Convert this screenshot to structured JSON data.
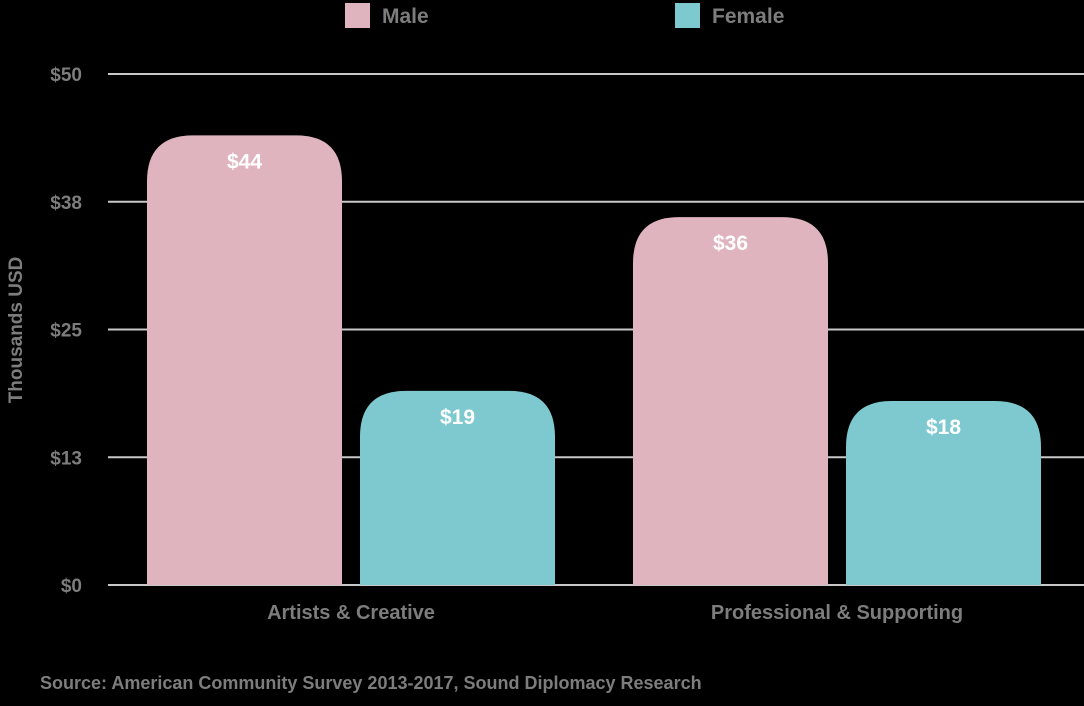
{
  "chart_data": {
    "type": "bar",
    "title": "",
    "xlabel": "",
    "ylabel": "Thousands USD",
    "categories": [
      "Artists & Creative",
      "Professional & Supporting"
    ],
    "series": [
      {
        "name": "Male",
        "values": [
          44,
          36
        ],
        "labels": [
          "$44",
          "$36"
        ],
        "color": "#e0b4bf"
      },
      {
        "name": "Female",
        "values": [
          19,
          18
        ],
        "labels": [
          "$19",
          "$18"
        ],
        "color": "#7ec9cf"
      }
    ],
    "ylim": [
      0,
      50
    ],
    "yticks": [
      0,
      12.5,
      25,
      37.5,
      50
    ],
    "ytick_labels": [
      "$0",
      "$13",
      "$25",
      "$38",
      "$50"
    ],
    "grid": true,
    "legend_position": "top-center"
  },
  "source_note": "Source: American Community Survey 2013-2017, Sound Diplomacy Research",
  "colors": {
    "background": "#000000",
    "gridline": "#c8c8c8",
    "text": "#7d7d7d",
    "data_label": "#ffffff"
  }
}
